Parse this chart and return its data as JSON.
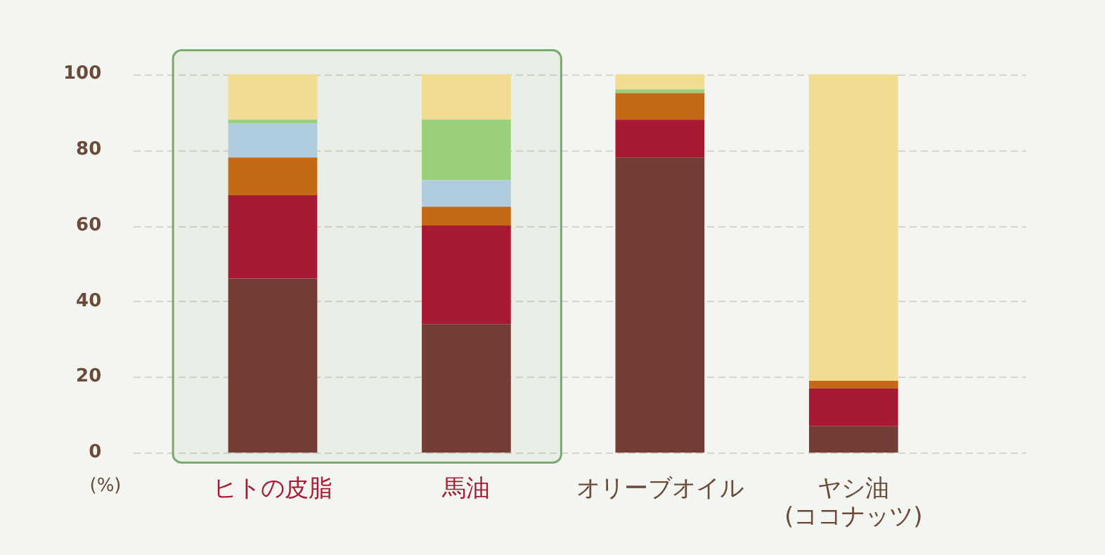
{
  "chart_data": {
    "type": "bar",
    "stacked": true,
    "ylabel": "(%)",
    "categories": [
      "ヒトの皮脂",
      "馬油",
      "オリーブオイル",
      "ヤシ油\n(ココナッツ)"
    ],
    "series": [
      {
        "color": "#733c35",
        "values": [
          46,
          34,
          78,
          7
        ]
      },
      {
        "color": "#a81a33",
        "values": [
          22,
          26,
          10,
          10
        ]
      },
      {
        "color": "#c46a14",
        "values": [
          10,
          5,
          7,
          2
        ]
      },
      {
        "color": "#b0cde0",
        "values": [
          9,
          7,
          0,
          0
        ]
      },
      {
        "color": "#9bd07b",
        "values": [
          1,
          16,
          1,
          0
        ]
      },
      {
        "color": "#f2dc92",
        "values": [
          12,
          12,
          4,
          81
        ]
      }
    ],
    "ylim": [
      0,
      100
    ],
    "yticks": [
      0,
      20,
      40,
      60,
      80,
      100
    ],
    "grid": "y",
    "bands": [
      {
        "axis": "x",
        "from": "ヒトの皮脂",
        "to": "馬油",
        "color": "#7aab6e"
      }
    ]
  }
}
